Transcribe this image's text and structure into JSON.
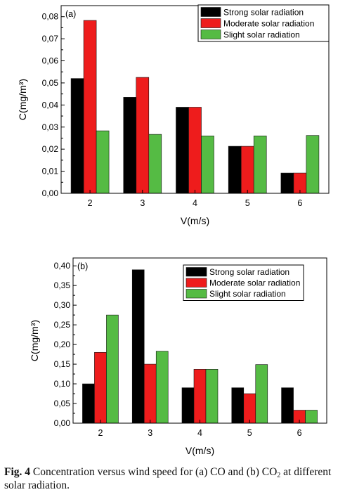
{
  "chart_data": [
    {
      "type": "bar",
      "panel_label": "(a)",
      "categories": [
        "2",
        "3",
        "4",
        "5",
        "6"
      ],
      "series": [
        {
          "name": "Strong solar radiation",
          "color": "#000000",
          "values": [
            0.052,
            0.0435,
            0.039,
            0.0213,
            0.0092
          ]
        },
        {
          "name": "Moderate solar radiation",
          "color": "#ee1c1c",
          "values": [
            0.0783,
            0.0525,
            0.039,
            0.0213,
            0.0092
          ]
        },
        {
          "name": "Slight solar radiation",
          "color": "#55bb44",
          "values": [
            0.0283,
            0.0267,
            0.026,
            0.026,
            0.0262
          ]
        }
      ],
      "xlabel": "V(m/s)",
      "ylabel": "C(mg/m³)",
      "ylim": [
        0,
        0.085
      ],
      "yticks": [
        0,
        0.01,
        0.02,
        0.03,
        0.04,
        0.05,
        0.06,
        0.07,
        0.08
      ],
      "ytick_labels": [
        "0,00",
        "0,01",
        "0,02",
        "0,03",
        "0,04",
        "0,05",
        "0,06",
        "0,07",
        "0,08"
      ],
      "legend_position": "top-right",
      "grid": false
    },
    {
      "type": "bar",
      "panel_label": "(b)",
      "categories": [
        "2",
        "3",
        "4",
        "5",
        "6"
      ],
      "series": [
        {
          "name": "Strong solar radiation",
          "color": "#000000",
          "values": [
            0.1,
            0.39,
            0.09,
            0.09,
            0.09
          ]
        },
        {
          "name": "Moderate solar radiation",
          "color": "#ee1c1c",
          "values": [
            0.18,
            0.15,
            0.137,
            0.075,
            0.033
          ]
        },
        {
          "name": "Slight solar radiation",
          "color": "#55bb44",
          "values": [
            0.275,
            0.183,
            0.137,
            0.149,
            0.033
          ]
        }
      ],
      "xlabel": "V(m/s)",
      "ylabel": "C(mg/m³)",
      "ylim": [
        0,
        0.42
      ],
      "yticks": [
        0,
        0.05,
        0.1,
        0.15,
        0.2,
        0.25,
        0.3,
        0.35,
        0.4
      ],
      "ytick_labels": [
        "0,00",
        "0,05",
        "0,10",
        "0,15",
        "0,20",
        "0,25",
        "0,30",
        "0,35",
        "0,40"
      ],
      "legend_position": "top-right",
      "grid": false
    }
  ],
  "caption": {
    "label": "Fig. 4",
    "text_part1": " Concentration versus wind speed for (a) CO and (b) CO",
    "subscript": "2",
    "text_part2": " at different solar radiation."
  }
}
